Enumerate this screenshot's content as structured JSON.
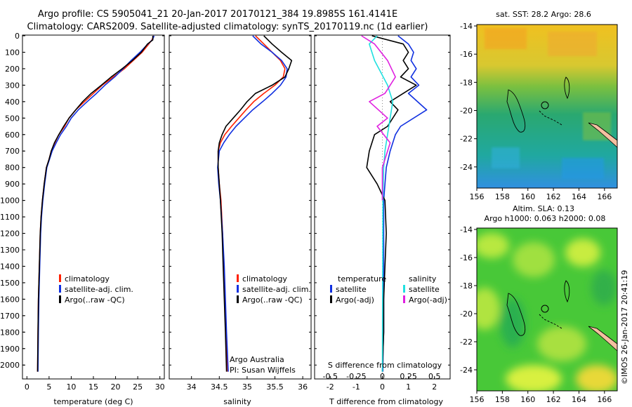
{
  "header": {
    "line1": "Argo profile: CS 5905041_21 20-Jan-2017 20170121_384 19.8985S 161.4141E",
    "line2": "Climatology: CARS2009. Satellite-adjusted climatology: synTS_20170119.nc (1d earlier)"
  },
  "credit": {
    "line1": "Argo Australia",
    "line2": "PI: Susan Wijffels",
    "vertical": "©IMOS 26-Jan-2017 20:41:19"
  },
  "colors": {
    "climatology": "#ff2000",
    "satellite": "#1030e0",
    "argo": "#000000",
    "sal_satellite": "#20e0e0",
    "sal_argo": "#e020e0",
    "land": "#f4c0a0"
  },
  "chart_data": [
    {
      "type": "line",
      "xlabel": "temperature (deg C)",
      "xlim": [
        -1,
        31
      ],
      "xticks": [
        "0",
        "5",
        "10",
        "15",
        "20",
        "25",
        "30"
      ],
      "ylim": [
        2080,
        0
      ],
      "yticks": [
        "0",
        "100",
        "200",
        "300",
        "400",
        "500",
        "600",
        "700",
        "800",
        "900",
        "1000",
        "1100",
        "1200",
        "1300",
        "1400",
        "1500",
        "1600",
        "1700",
        "1800",
        "1900",
        "2000"
      ],
      "legend": [
        "climatology",
        "satellite-adj. clim.",
        "Argo(..raw -QC)"
      ],
      "series": [
        {
          "name": "climatology",
          "color": "#ff2000",
          "x": [
            28.6,
            28.2,
            27.5,
            26,
            24,
            22,
            19.5,
            17,
            15,
            13,
            11,
            9.5,
            8.5,
            7.2,
            6.3,
            5.5,
            5,
            4.4,
            3.9,
            3.5,
            3.2,
            3.0,
            2.8,
            2.6,
            2.5,
            2.4
          ],
          "y": [
            0,
            25,
            50,
            100,
            150,
            200,
            250,
            300,
            350,
            400,
            450,
            500,
            550,
            600,
            650,
            700,
            750,
            800,
            900,
            1000,
            1100,
            1200,
            1400,
            1600,
            1800,
            2040
          ]
        },
        {
          "name": "satellite-adj. clim.",
          "color": "#1030e0",
          "x": [
            28.7,
            28.3,
            27.3,
            25.5,
            23.5,
            21.7,
            19.8,
            17.6,
            15.7,
            13.6,
            11.6,
            10,
            8.9,
            7.6,
            6.6,
            5.7,
            5.1,
            4.5,
            4,
            3.6,
            3.3,
            3.1,
            2.9,
            2.7,
            2.6,
            2.5
          ],
          "y": [
            0,
            25,
            50,
            100,
            150,
            200,
            250,
            300,
            350,
            400,
            450,
            500,
            550,
            600,
            650,
            700,
            750,
            800,
            900,
            1000,
            1100,
            1200,
            1400,
            1600,
            1800,
            2040
          ]
        },
        {
          "name": "Argo(..raw -QC)",
          "color": "#000000",
          "x": [
            28.4,
            28.4,
            27.2,
            25.8,
            23.8,
            21.5,
            19,
            16.8,
            14.5,
            12.6,
            11,
            9.5,
            8.3,
            7.2,
            6.2,
            5.5,
            5,
            4.4,
            3.9,
            3.5,
            3.2,
            3.0,
            2.8,
            2.6,
            2.5,
            2.4
          ],
          "y": [
            0,
            25,
            50,
            100,
            150,
            200,
            250,
            300,
            350,
            400,
            450,
            500,
            550,
            600,
            650,
            700,
            750,
            800,
            900,
            1000,
            1100,
            1200,
            1400,
            1600,
            1800,
            2040
          ]
        }
      ]
    },
    {
      "type": "line",
      "xlabel": "salinity",
      "xlim": [
        33.6,
        36.15
      ],
      "xticks": [
        "34",
        "34.5",
        "35",
        "35.5",
        "36"
      ],
      "ylim": [
        2080,
        0
      ],
      "legend": [
        "climatology",
        "satellite-adj. clim.",
        "Argo(..raw -QC)"
      ],
      "series": [
        {
          "name": "climatology",
          "color": "#ff2000",
          "x": [
            35.15,
            35.3,
            35.45,
            35.6,
            35.68,
            35.65,
            35.5,
            35.3,
            35.12,
            34.98,
            34.85,
            34.72,
            34.6,
            34.52,
            34.48,
            34.48,
            34.5,
            34.53,
            34.56,
            34.58,
            34.6,
            34.62,
            34.65
          ],
          "y": [
            0,
            50,
            100,
            150,
            200,
            250,
            300,
            350,
            400,
            450,
            500,
            550,
            600,
            650,
            700,
            800,
            900,
            1000,
            1200,
            1400,
            1600,
            1800,
            2040
          ]
        },
        {
          "name": "satellite-adj. clim.",
          "color": "#1030e0",
          "x": [
            35.1,
            35.25,
            35.45,
            35.62,
            35.72,
            35.7,
            35.6,
            35.45,
            35.28,
            35.1,
            34.95,
            34.8,
            34.68,
            34.58,
            34.5,
            34.47,
            34.49,
            34.52,
            34.56,
            34.59,
            34.61,
            34.63,
            34.66
          ],
          "y": [
            0,
            50,
            100,
            150,
            200,
            250,
            300,
            350,
            400,
            450,
            500,
            550,
            600,
            650,
            700,
            800,
            900,
            1000,
            1200,
            1400,
            1600,
            1800,
            2040
          ]
        },
        {
          "name": "Argo(..raw -QC)",
          "color": "#000000",
          "x": [
            35.3,
            35.45,
            35.62,
            35.8,
            35.75,
            35.68,
            35.45,
            35.15,
            35,
            34.88,
            34.75,
            34.62,
            34.55,
            34.5,
            34.48,
            34.48,
            34.5,
            34.52,
            34.55,
            34.57,
            34.59,
            34.61,
            34.63
          ],
          "y": [
            0,
            50,
            100,
            150,
            200,
            250,
            300,
            350,
            400,
            450,
            500,
            550,
            600,
            650,
            700,
            800,
            900,
            1000,
            1200,
            1400,
            1600,
            1800,
            2040
          ]
        }
      ]
    },
    {
      "type": "line",
      "xlabel": "T difference from climatology",
      "xlabel_top": "S difference from climatology",
      "xlim": [
        -2.6,
        2.6
      ],
      "xticks": [
        "-2",
        "-1",
        "0",
        "1",
        "2"
      ],
      "xticks_top": [
        "-0.5",
        "-0.25",
        "0",
        "0.25",
        "0.5"
      ],
      "ylim": [
        2080,
        0
      ],
      "legend_left_title": "temperature",
      "legend_right_title": "salinity",
      "legend_left": [
        "satellite",
        "Argo(-adj)"
      ],
      "legend_right": [
        "satellite",
        "Argo(-adj)"
      ],
      "series": [
        {
          "name": "satellite",
          "color": "#1030e0",
          "x": [
            0.6,
            1.0,
            1.2,
            1.1,
            1.3,
            1.1,
            1.4,
            1.0,
            1.7,
            0.7,
            0.5,
            0.3,
            0.15,
            0.1,
            0.05,
            0.05,
            0.05,
            0.05,
            0.05,
            0.03,
            0.02
          ],
          "y": [
            0,
            50,
            100,
            150,
            200,
            250,
            300,
            350,
            450,
            550,
            600,
            700,
            800,
            900,
            1000,
            1200,
            1400,
            1600,
            1800,
            1900,
            2040
          ]
        },
        {
          "name": "Argo(-adj)",
          "color": "#000000",
          "x": [
            -0.4,
            0.8,
            1.0,
            0.8,
            1.0,
            0.7,
            1.3,
            0.3,
            0.6,
            0.2,
            -0.3,
            -0.5,
            -0.6,
            -0.2,
            0.1,
            0.15,
            0.1,
            0.05,
            0.05,
            0.0
          ],
          "y": [
            0,
            50,
            100,
            150,
            200,
            250,
            300,
            400,
            450,
            550,
            600,
            700,
            800,
            900,
            1000,
            1200,
            1400,
            1600,
            1800,
            2040
          ]
        },
        {
          "name": "satellite",
          "color": "#20e0e0",
          "x": [
            -0.2,
            -0.5,
            -0.3,
            0.2,
            0.4,
            0.3,
            0.2,
            0.1,
            0.05,
            0.02,
            0.0
          ],
          "y": [
            0,
            50,
            150,
            300,
            400,
            500,
            600,
            700,
            800,
            1000,
            2040
          ]
        },
        {
          "name": "Argo(-adj)",
          "color": "#e020e0",
          "x": [
            -0.8,
            -0.3,
            0.2,
            0.5,
            0.1,
            -0.5,
            0.2,
            -0.2,
            0.3,
            0.0,
            0.0
          ],
          "y": [
            0,
            50,
            150,
            250,
            350,
            400,
            500,
            550,
            650,
            800,
            1000
          ]
        }
      ]
    },
    {
      "type": "heatmap",
      "title": "sat. SST: 28.2  Argo: 28.6",
      "xticks": [
        "156",
        "158",
        "160",
        "162",
        "164",
        "166"
      ],
      "yticks": [
        "-14",
        "-16",
        "-18",
        "-20",
        "-22",
        "-24"
      ]
    },
    {
      "type": "heatmap",
      "title_line1": "Altim. SLA: 0.13",
      "title_line2": "Argo h1000: 0.063  h2000: 0.08",
      "xticks": [
        "156",
        "158",
        "160",
        "162",
        "164",
        "166"
      ],
      "yticks": [
        "-14",
        "-16",
        "-18",
        "-20",
        "-22",
        "-24"
      ]
    }
  ]
}
